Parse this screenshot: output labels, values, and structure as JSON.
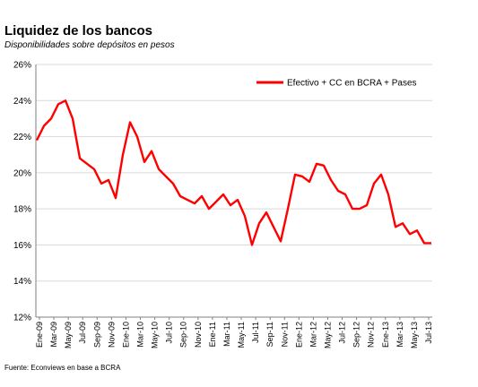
{
  "chart_data": {
    "type": "line",
    "title": "Liquidez de los bancos",
    "subtitle": "Disponibilidades sobre depósitos en pesos",
    "source": "Fuente: Econviews en base a BCRA",
    "ylabel": "",
    "xlabel": "",
    "ylim": [
      12,
      26
    ],
    "yticks": [
      "12%",
      "14%",
      "16%",
      "18%",
      "20%",
      "22%",
      "24%",
      "26%"
    ],
    "grid": true,
    "legend_position": "top-right",
    "x_tick_labels": [
      "Ene-09",
      "Mar-09",
      "May-09",
      "Jul-09",
      "Sep-09",
      "Nov-09",
      "Ene-10",
      "Mar-10",
      "May-10",
      "Jul-10",
      "Sep-10",
      "Nov-10",
      "Ene-11",
      "Mar-11",
      "May-11",
      "Jul-11",
      "Sep-11",
      "Nov-11",
      "Ene-12",
      "Mar-12",
      "May-12",
      "Jul-12",
      "Sep-12",
      "Nov-12",
      "Ene-13",
      "Mar-13",
      "May-13",
      "Jul-13"
    ],
    "series": [
      {
        "name": "Efectivo + CC en BCRA + Pases",
        "color": "#ff0000",
        "x": [
          "Ene-09",
          "Feb-09",
          "Mar-09",
          "Abr-09",
          "May-09",
          "Jun-09",
          "Jul-09",
          "Ago-09",
          "Sep-09",
          "Oct-09",
          "Nov-09",
          "Dic-09",
          "Ene-10",
          "Feb-10",
          "Mar-10",
          "Abr-10",
          "May-10",
          "Jun-10",
          "Jul-10",
          "Ago-10",
          "Sep-10",
          "Oct-10",
          "Nov-10",
          "Dic-10",
          "Ene-11",
          "Feb-11",
          "Mar-11",
          "Abr-11",
          "May-11",
          "Jun-11",
          "Jul-11",
          "Ago-11",
          "Sep-11",
          "Oct-11",
          "Nov-11",
          "Dic-11",
          "Ene-12",
          "Feb-12",
          "Mar-12",
          "Abr-12",
          "May-12",
          "Jun-12",
          "Jul-12",
          "Ago-12",
          "Sep-12",
          "Oct-12",
          "Nov-12",
          "Dic-12",
          "Ene-13",
          "Feb-13",
          "Mar-13",
          "Abr-13",
          "May-13",
          "Jun-13",
          "Jul-13",
          "Ago-13"
        ],
        "values": [
          21.8,
          22.6,
          23.0,
          23.8,
          24.0,
          23.0,
          20.8,
          20.5,
          20.2,
          19.4,
          19.6,
          18.6,
          21.0,
          22.8,
          22.0,
          20.6,
          21.2,
          20.2,
          19.8,
          19.4,
          18.7,
          18.5,
          18.3,
          18.7,
          18.0,
          18.4,
          18.8,
          18.2,
          18.5,
          17.6,
          16.0,
          17.2,
          17.8,
          17.0,
          16.2,
          18.0,
          19.9,
          19.8,
          19.5,
          20.5,
          20.4,
          19.6,
          19.0,
          18.8,
          18.0,
          18.0,
          18.2,
          19.4,
          19.9,
          18.8,
          17.0,
          17.2,
          16.6,
          16.8,
          16.1,
          16.1
        ]
      }
    ]
  }
}
